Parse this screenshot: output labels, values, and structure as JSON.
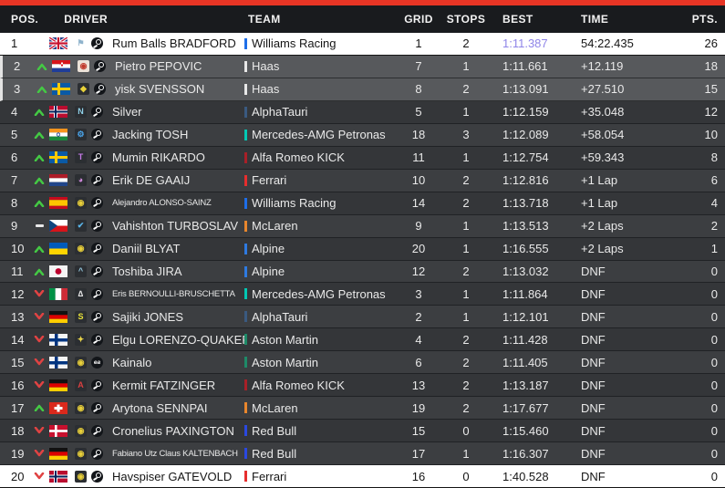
{
  "accent": {
    "top_bar": "#e73525",
    "fastest_lap_color": "#8f85e8",
    "trend_up_color": "#44c944",
    "trend_down_color": "#e04343"
  },
  "header": {
    "pos": "POS.",
    "driver": "DRIVER",
    "team": "TEAM",
    "grid": "GRID",
    "stops": "STOPS",
    "best": "BEST",
    "time": "TIME",
    "pts": "PTS."
  },
  "rows": [
    {
      "pos": "1",
      "trend": "none",
      "flag": "gb",
      "avatar": {
        "bg": "transparent",
        "glyph": "⚑",
        "color": "#8fb3cc"
      },
      "platform": "steam-icon",
      "driver": "Rum Balls BRADFORD",
      "team": "Williams Racing",
      "team_color": "#1e6ee8",
      "grid": "1",
      "stops": "2",
      "best": "1:11.387",
      "best_fastest": true,
      "time": "54:22.435",
      "pts": "26",
      "row_style": "white"
    },
    {
      "pos": "2",
      "trend": "up",
      "flag": "hr",
      "avatar": {
        "bg": "#ece2d8",
        "glyph": "◉",
        "color": "#c0392b"
      },
      "platform": "steam-icon",
      "driver": "Pietro PEPOVIC",
      "team": "Haas",
      "team_color": "#e8e8e8",
      "grid": "7",
      "stops": "1",
      "best": "1:11.661",
      "best_fastest": false,
      "time": "+12.119",
      "pts": "18",
      "row_style": "highlight"
    },
    {
      "pos": "3",
      "trend": "up",
      "flag": "se",
      "avatar": {
        "bg": "#2b2e32",
        "glyph": "◆",
        "color": "#e8d23a"
      },
      "platform": "steam-icon",
      "driver": "yisk SVENSSON",
      "team": "Haas",
      "team_color": "#e8e8e8",
      "grid": "8",
      "stops": "2",
      "best": "1:13.091",
      "best_fastest": false,
      "time": "+27.510",
      "pts": "15",
      "row_style": "highlight"
    },
    {
      "pos": "4",
      "trend": "up",
      "flag": "no",
      "avatar": {
        "bg": "#2b2e32",
        "glyph": "N",
        "color": "#8fd0e8"
      },
      "platform": "steam-icon",
      "driver": "Silver",
      "team": "AlphaTauri",
      "team_color": "#3a5a80",
      "grid": "5",
      "stops": "1",
      "best": "1:12.159",
      "best_fastest": false,
      "time": "+35.048",
      "pts": "12",
      "row_style": "dark-a"
    },
    {
      "pos": "5",
      "trend": "up",
      "flag": "in",
      "avatar": {
        "bg": "#2b2e32",
        "glyph": "⚙",
        "color": "#4aa3e8"
      },
      "platform": "steam-icon",
      "driver": "Jacking TOSH",
      "team": "Mercedes-AMG Petronas",
      "team_color": "#00c8b4",
      "grid": "18",
      "stops": "3",
      "best": "1:12.089",
      "best_fastest": false,
      "time": "+58.054",
      "pts": "10",
      "row_style": "dark-b"
    },
    {
      "pos": "6",
      "trend": "up",
      "flag": "se",
      "avatar": {
        "bg": "#2b2e32",
        "glyph": "T",
        "color": "#c77ae8"
      },
      "platform": "steam-icon",
      "driver": "Mumin RIKARDO",
      "team": "Alfa Romeo KICK",
      "team_color": "#a82028",
      "grid": "11",
      "stops": "1",
      "best": "1:12.754",
      "best_fastest": false,
      "time": "+59.343",
      "pts": "8",
      "row_style": "dark-a"
    },
    {
      "pos": "7",
      "trend": "up",
      "flag": "nl",
      "avatar": {
        "bg": "#2b2e32",
        "glyph": "◕",
        "color": "#d48ae0"
      },
      "platform": "steam-icon",
      "driver": "Erik DE GAAIJ",
      "team": "Ferrari",
      "team_color": "#e62e2e",
      "grid": "10",
      "stops": "2",
      "best": "1:12.816",
      "best_fastest": false,
      "time": "+1 Lap",
      "pts": "6",
      "row_style": "dark-b"
    },
    {
      "pos": "8",
      "trend": "up",
      "flag": "es",
      "avatar": {
        "bg": "#2b2e32",
        "glyph": "◉",
        "color": "#e8cf3a"
      },
      "platform": "steam-icon",
      "driver": "Alejandro ALONSO-SAINZ",
      "team": "Williams Racing",
      "team_color": "#1e6ee8",
      "grid": "14",
      "stops": "2",
      "best": "1:13.718",
      "best_fastest": false,
      "time": "+1 Lap",
      "pts": "4",
      "row_style": "dark-a"
    },
    {
      "pos": "9",
      "trend": "same",
      "flag": "cz",
      "avatar": {
        "bg": "#2b2e32",
        "glyph": "✔",
        "color": "#5ab4e8"
      },
      "platform": "steam-icon",
      "driver": "Vahishton TURBOSLAV",
      "team": "McLaren",
      "team_color": "#e8862d",
      "grid": "9",
      "stops": "1",
      "best": "1:13.513",
      "best_fastest": false,
      "time": "+2 Laps",
      "pts": "2",
      "row_style": "dark-b"
    },
    {
      "pos": "10",
      "trend": "up",
      "flag": "ua",
      "avatar": {
        "bg": "#2b2e32",
        "glyph": "◉",
        "color": "#e8cf3a"
      },
      "platform": "steam-icon",
      "driver": "Daniil BLYAT",
      "team": "Alpine",
      "team_color": "#2e7ae0",
      "grid": "20",
      "stops": "1",
      "best": "1:16.555",
      "best_fastest": false,
      "time": "+2 Laps",
      "pts": "1",
      "row_style": "dark-a"
    },
    {
      "pos": "11",
      "trend": "up",
      "flag": "jp",
      "avatar": {
        "bg": "#2b2e32",
        "glyph": "^",
        "color": "#9ad0e8"
      },
      "platform": "steam-icon",
      "driver": "Toshiba JIRA",
      "team": "Alpine",
      "team_color": "#2e7ae0",
      "grid": "12",
      "stops": "2",
      "best": "1:13.032",
      "best_fastest": false,
      "time": "DNF",
      "pts": "0",
      "row_style": "dark-b"
    },
    {
      "pos": "12",
      "trend": "down",
      "flag": "it",
      "avatar": {
        "bg": "#2b2e32",
        "glyph": "∆",
        "color": "#e8e8e8"
      },
      "platform": "steam-icon",
      "driver": "Eris BERNOULLI-BRUSCHETTA",
      "team": "Mercedes-AMG Petronas",
      "team_color": "#00c8b4",
      "grid": "3",
      "stops": "1",
      "best": "1:11.864",
      "best_fastest": false,
      "time": "DNF",
      "pts": "0",
      "row_style": "dark-a"
    },
    {
      "pos": "13",
      "trend": "down",
      "flag": "de",
      "avatar": {
        "bg": "#2b2e32",
        "glyph": "S",
        "color": "#e8e23a"
      },
      "platform": "steam-icon",
      "driver": "Sajiki JONES",
      "team": "AlphaTauri",
      "team_color": "#3a5a80",
      "grid": "2",
      "stops": "1",
      "best": "1:12.101",
      "best_fastest": false,
      "time": "DNF",
      "pts": "0",
      "row_style": "dark-b"
    },
    {
      "pos": "14",
      "trend": "down",
      "flag": "fi",
      "avatar": {
        "bg": "#2b2e32",
        "glyph": "✦",
        "color": "#e8d44a"
      },
      "platform": "steam-icon",
      "driver": "Elgu LORENZO-QUAKER",
      "team": "Aston Martin",
      "team_color": "#1e8a68",
      "grid": "4",
      "stops": "2",
      "best": "1:11.428",
      "best_fastest": false,
      "time": "DNF",
      "pts": "0",
      "row_style": "dark-a"
    },
    {
      "pos": "15",
      "trend": "down",
      "flag": "fi",
      "avatar": {
        "bg": "#2b2e32",
        "glyph": "◉",
        "color": "#e8cf3a"
      },
      "platform": "ea-icon",
      "driver": "Kainalo",
      "team": "Aston Martin",
      "team_color": "#1e8a68",
      "grid": "6",
      "stops": "2",
      "best": "1:11.405",
      "best_fastest": false,
      "time": "DNF",
      "pts": "0",
      "row_style": "dark-b"
    },
    {
      "pos": "16",
      "trend": "down",
      "flag": "de",
      "avatar": {
        "bg": "#2b2e32",
        "glyph": "A",
        "color": "#d84040"
      },
      "platform": "steam-icon",
      "driver": "Kermit FATZINGER",
      "team": "Alfa Romeo KICK",
      "team_color": "#a82028",
      "grid": "13",
      "stops": "2",
      "best": "1:13.187",
      "best_fastest": false,
      "time": "DNF",
      "pts": "0",
      "row_style": "dark-a"
    },
    {
      "pos": "17",
      "trend": "up",
      "flag": "ch",
      "avatar": {
        "bg": "#2b2e32",
        "glyph": "◉",
        "color": "#e8cf3a"
      },
      "platform": "steam-icon",
      "driver": "Arytona SENNPAI",
      "team": "McLaren",
      "team_color": "#e8862d",
      "grid": "19",
      "stops": "2",
      "best": "1:17.677",
      "best_fastest": false,
      "time": "DNF",
      "pts": "0",
      "row_style": "dark-b"
    },
    {
      "pos": "18",
      "trend": "down",
      "flag": "dk",
      "avatar": {
        "bg": "#2b2e32",
        "glyph": "◉",
        "color": "#e8cf3a"
      },
      "platform": "steam-icon",
      "driver": "Cronelius PAXINGTON",
      "team": "Red Bull",
      "team_color": "#2a48e0",
      "grid": "15",
      "stops": "0",
      "best": "1:15.460",
      "best_fastest": false,
      "time": "DNF",
      "pts": "0",
      "row_style": "dark-a"
    },
    {
      "pos": "19",
      "trend": "down",
      "flag": "de",
      "avatar": {
        "bg": "#2b2e32",
        "glyph": "◉",
        "color": "#e8cf3a"
      },
      "platform": "steam-icon",
      "driver": "Fabiano Utz Claus KALTENBACH",
      "team": "Red Bull",
      "team_color": "#2a48e0",
      "grid": "17",
      "stops": "1",
      "best": "1:16.307",
      "best_fastest": false,
      "time": "DNF",
      "pts": "0",
      "row_style": "dark-b"
    },
    {
      "pos": "20",
      "trend": "down",
      "flag": "no",
      "avatar": {
        "bg": "#2b2e32",
        "glyph": "◉",
        "color": "#e8cf3a"
      },
      "platform": "steam-icon",
      "driver": "Havspiser GATEVOLD",
      "team": "Ferrari",
      "team_color": "#e62e2e",
      "grid": "16",
      "stops": "0",
      "best": "1:40.528",
      "best_fastest": false,
      "time": "DNF",
      "pts": "0",
      "row_style": "white"
    }
  ]
}
